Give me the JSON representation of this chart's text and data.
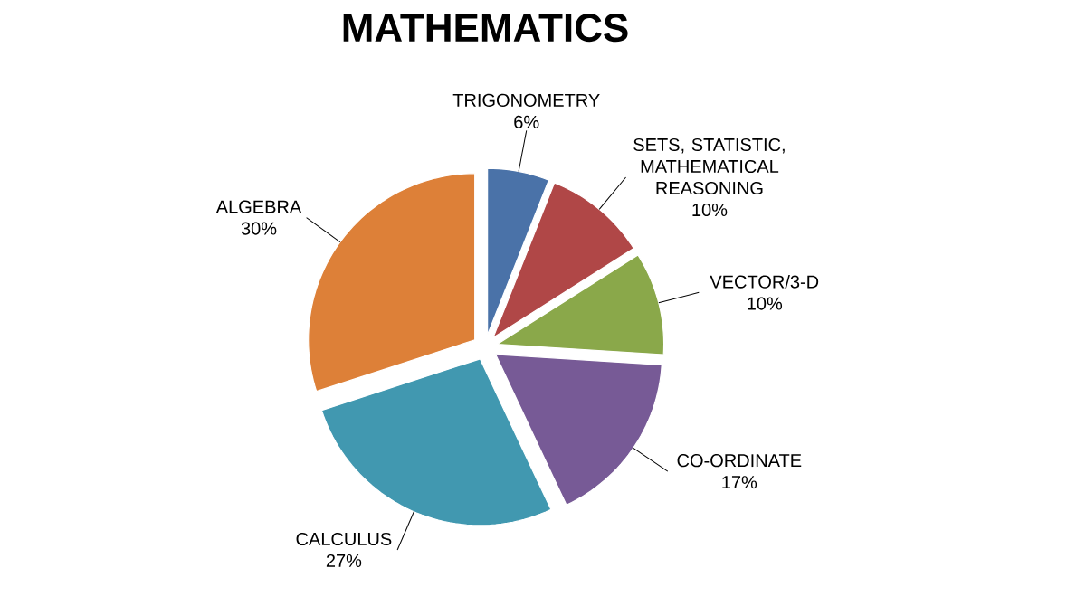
{
  "chart_data": {
    "type": "pie",
    "title": "MATHEMATICS",
    "categories": [
      "TRIGONOMETRY",
      "SETS, STATISTIC, MATHEMATICAL REASONING",
      "VECTOR/3-D",
      "CO-ORDINATE",
      "CALCULUS",
      "ALGEBRA"
    ],
    "values": [
      6,
      10,
      10,
      17,
      27,
      30
    ],
    "value_labels": [
      "6%",
      "10%",
      "10%",
      "17%",
      "27%",
      "30%"
    ],
    "colors": [
      "#4a72a8",
      "#b04747",
      "#8aa84a",
      "#775a96",
      "#4198b0",
      "#dd8038"
    ],
    "data_labels": true
  }
}
